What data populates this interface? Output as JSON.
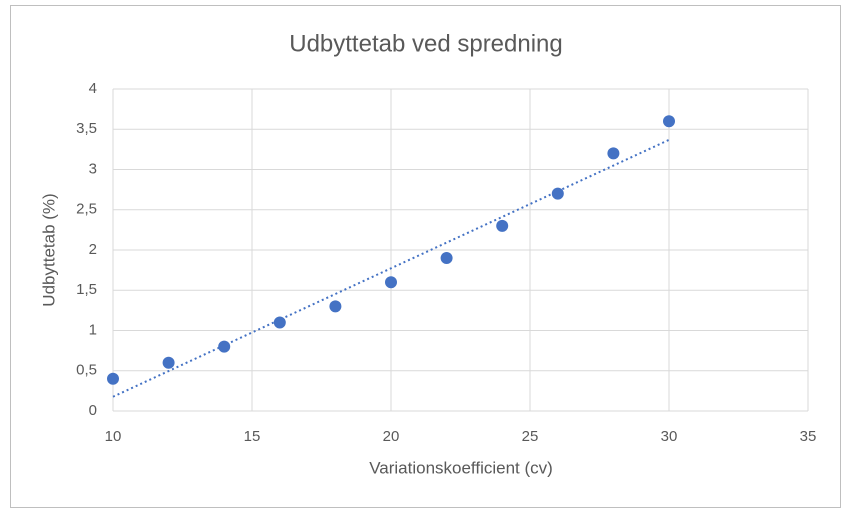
{
  "chart_data": {
    "type": "scatter",
    "title": "Udbyttetab ved spredning",
    "x_label": "Variationskoefficient (cv)",
    "y_label": "Udbyttetab (%)",
    "x": [
      10,
      12,
      14,
      16,
      18,
      20,
      22,
      24,
      26,
      28,
      30
    ],
    "values": [
      0.4,
      0.6,
      0.8,
      1.1,
      1.3,
      1.6,
      1.9,
      2.3,
      2.7,
      3.2,
      3.6
    ],
    "color": "#4472c4",
    "trendline": "linear",
    "xlim": [
      10,
      35
    ],
    "xticks": [
      10,
      15,
      20,
      25,
      30,
      35
    ],
    "ylim": [
      0,
      4
    ],
    "yticks": [
      0,
      {
        "value": 0.5,
        "label": "0,5"
      },
      1,
      {
        "value": 1.5,
        "label": "1,5"
      },
      2,
      {
        "value": 2.5,
        "label": "2,5"
      },
      3,
      {
        "value": 3.5,
        "label": "3,5"
      },
      4
    ],
    "grid": true
  }
}
